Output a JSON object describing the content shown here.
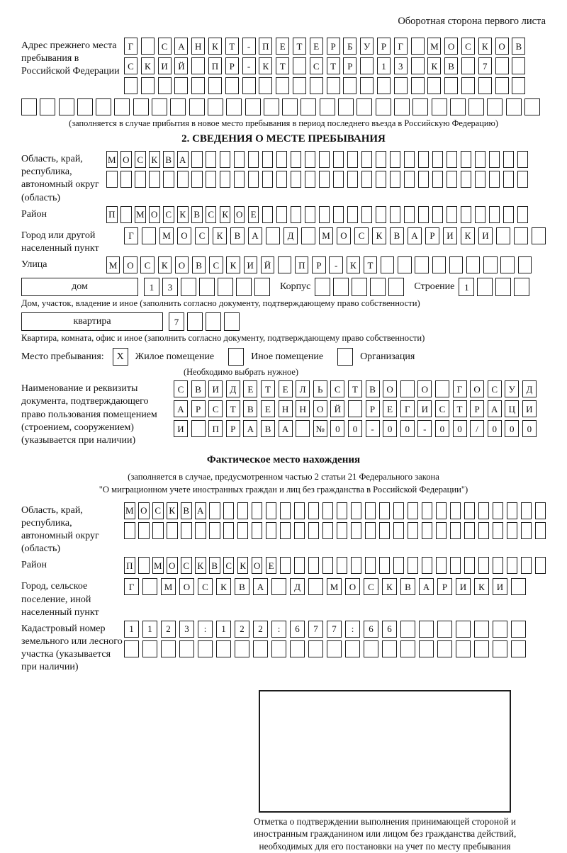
{
  "page": {
    "side_note": "Оборотная сторона первого листа"
  },
  "prev_address": {
    "label": "Адрес прежнего места пребывания в Российской Федерации",
    "row1": "Г САНКТ-ПЕТЕРБУРГ МОСКОВ",
    "row2": "СКИЙ ПР-КТ СТР 13 КВ 7  ",
    "row3": "                        ",
    "row4": "                            ",
    "note": "(заполняется в случае прибытия в новое место пребывания в период последнего въезда в Российскую Федерацию)"
  },
  "section2": {
    "title": "2. СВЕДЕНИЯ О МЕСТЕ ПРЕБЫВАНИЯ",
    "region": {
      "label": "Область, край, республика, автономный округ (область)",
      "row1": "МОСКВА                        ",
      "row2": "                              "
    },
    "district": {
      "label": "Район",
      "row1": "П МОСКВСКОЕ                   "
    },
    "city": {
      "label": "Город или другой населенный пункт",
      "row1": "Г МОСКВА Д МОСКВАРИКИ   "
    },
    "street": {
      "label": "Улица",
      "row1": "МОСКОВСКИЙ ПР-КТ         "
    },
    "house": {
      "box_label": "дом",
      "cells": "13     ",
      "korpus_label": "Корпус",
      "korpus_cells": "     ",
      "stroenie_label": "Строение",
      "stroenie_cells": "1   ",
      "note": "Дом, участок, владение и иное (заполнить согласно документу, подтверждающему право собственности)"
    },
    "apartment": {
      "box_label": "квартира",
      "cells": "7   ",
      "note": "Квартира, комната, офис и иное (заполнить согласно документу, подтверждающему право собственности)"
    },
    "stay_type": {
      "label": "Место пребывания:",
      "options": [
        {
          "label": "Жилое помещение",
          "mark": "X"
        },
        {
          "label": "Иное помещение",
          "mark": ""
        },
        {
          "label": "Организация",
          "mark": ""
        }
      ],
      "note": "(Необходимо выбрать нужное)"
    },
    "document": {
      "label": "Наименование и реквизиты документа, подтверждающего право пользования помещением (строением, сооружением) (указывается при наличии)",
      "row1": "СВИДЕТЕЛЬСТВО О ГОСУД",
      "row2": "АРСТВЕННОЙ РЕГИСТРАЦИ",
      "row3": "И ПРАВА №00-00-00/000"
    }
  },
  "fact": {
    "title": "Фактическое место нахождения",
    "subtitle1": "(заполняется в случае, предусмотренном частью 2 статьи 21 Федерального закона",
    "subtitle2": "\"О миграционном учете иностранных граждан и лиц без гражданства в Российской Федерации\")",
    "region": {
      "label": "Область, край, республика, автономный округ (область)",
      "row1": "МОСКВА                        ",
      "row2": "                              "
    },
    "district": {
      "label": "Район",
      "row1": "П МОСКВСКОЕ                   "
    },
    "city": {
      "label": "Город, сельское поселение, иной населенный пункт",
      "row1": "Г МОСКВА Д МОСКВАРИКИ "
    },
    "cadastre": {
      "label": "Кадастровый номер земельного или лесного участка (указывается при наличии)",
      "row1": "1123:122:677:66       ",
      "row2": "                      "
    },
    "stamp_caption": "Отметка о подтверждении выполнения принимающей стороной и иностранным гражданином или лицом без гражданства действий, необходимых для его постановки на учет по месту пребывания"
  }
}
